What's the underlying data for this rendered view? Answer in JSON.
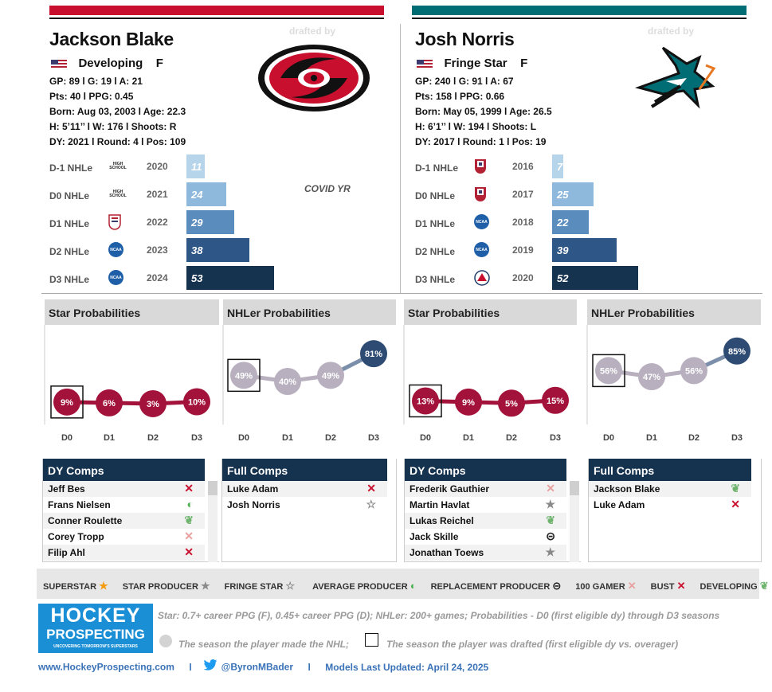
{
  "left": {
    "name": "Jackson Blake",
    "status": "Developing",
    "position": "F",
    "line1": "GP: 89 l G: 19 l A: 21",
    "line2": "Pts: 40 l PPG: 0.45",
    "line3": "Born: Aug 03, 2003 l Age: 22.3",
    "line4": "H: 5’11’’ l W: 176 l Shoots: R",
    "line5": "DY: 2021 l Round: 4 l Pos: 109",
    "drafted_by": "drafted by",
    "team_icon": "hurricanes-logo",
    "accent": "#c8102e",
    "covid_note": "COVID YR",
    "rows": [
      {
        "label": "D-1 NHLe",
        "year": "2020",
        "value": 11,
        "league": "HIGH SCHOOL",
        "color": "#b6d4ea"
      },
      {
        "label": "D0 NHLe",
        "year": "2021",
        "value": 24,
        "league": "HIGH SCHOOL",
        "color": "#8fb9dc"
      },
      {
        "label": "D1 NHLe",
        "year": "2022",
        "value": 29,
        "league": "USHL",
        "color": "#5a8cbd"
      },
      {
        "label": "D2 NHLe",
        "year": "2023",
        "value": 38,
        "league": "NCAA",
        "color": "#2e5687"
      },
      {
        "label": "D3 NHLe",
        "year": "2024",
        "value": 53,
        "league": "NCAA",
        "color": "#15324f"
      }
    ],
    "star_title": "Star Probabilities",
    "nhler_title": "NHLer Probabilities",
    "star_probs": [
      "9%",
      "6%",
      "3%",
      "10%"
    ],
    "nhler_probs": [
      "49%",
      "40%",
      "49%",
      "81%"
    ],
    "dy_title": "DY Comps",
    "full_title": "Full Comps",
    "dy_comps": [
      {
        "name": "Jeff Bes",
        "icon": "bust-x"
      },
      {
        "name": "Frans Nielsen",
        "icon": "average-producer"
      },
      {
        "name": "Conner Roulette",
        "icon": "developing-leaf"
      },
      {
        "name": "Corey Tropp",
        "icon": "100-gamer-x"
      },
      {
        "name": "Filip Ahl",
        "icon": "bust-x"
      }
    ],
    "full_comps": [
      {
        "name": "Luke Adam",
        "icon": "bust-x"
      },
      {
        "name": "Josh Norris",
        "icon": "fringe-star"
      }
    ]
  },
  "right": {
    "name": "Josh Norris",
    "status": "Fringe Star",
    "position": "F",
    "line1": "GP: 240 l G: 91 l A: 67",
    "line2": "Pts: 158 l PPG: 0.66",
    "line3": "Born: May 05, 1999 l Age: 26.5",
    "line4": "H: 6’1’’ l W: 194 l Shoots: L",
    "line5": "DY: 2017 l Round: 1 l Pos: 19",
    "drafted_by": "drafted by",
    "team_icon": "sharks-logo",
    "accent": "#006d75",
    "rows": [
      {
        "label": "D-1 NHLe",
        "year": "2016",
        "value": 7,
        "league": "USNTDP",
        "color": "#b6d4ea"
      },
      {
        "label": "D0 NHLe",
        "year": "2017",
        "value": 25,
        "league": "USNTDP",
        "color": "#8fb9dc"
      },
      {
        "label": "D1 NHLe",
        "year": "2018",
        "value": 22,
        "league": "NCAA",
        "color": "#5a8cbd"
      },
      {
        "label": "D2 NHLe",
        "year": "2019",
        "value": 39,
        "league": "NCAA",
        "color": "#2e5687"
      },
      {
        "label": "D3 NHLe",
        "year": "2020",
        "value": 52,
        "league": "AHL",
        "color": "#15324f"
      }
    ],
    "star_title": "Star Probabilities",
    "nhler_title": "NHLer Probabilities",
    "star_probs": [
      "13%",
      "9%",
      "5%",
      "15%"
    ],
    "nhler_probs": [
      "56%",
      "47%",
      "56%",
      "85%"
    ],
    "dy_title": "DY Comps",
    "full_title": "Full Comps",
    "dy_comps": [
      {
        "name": "Frederik Gauthier",
        "icon": "100-gamer-x"
      },
      {
        "name": "Martin Havlat",
        "icon": "star-producer"
      },
      {
        "name": "Lukas Reichel",
        "icon": "developing-leaf"
      },
      {
        "name": "Jack Skille",
        "icon": "replacement-producer"
      },
      {
        "name": "Jonathan Toews",
        "icon": "star-producer"
      }
    ],
    "full_comps": [
      {
        "name": "Jackson Blake",
        "icon": "developing-leaf"
      },
      {
        "name": "Luke Adam",
        "icon": "bust-x"
      }
    ]
  },
  "x_labels": [
    "D0",
    "D1",
    "D2",
    "D3"
  ],
  "legend": [
    {
      "label": "SUPERSTAR",
      "icon": "superstar"
    },
    {
      "label": "STAR PRODUCER",
      "icon": "star-producer"
    },
    {
      "label": "FRINGE STAR",
      "icon": "fringe-star"
    },
    {
      "label": "AVERAGE PRODUCER",
      "icon": "average-producer"
    },
    {
      "label": "REPLACEMENT PRODUCER",
      "icon": "replacement-producer"
    },
    {
      "label": "100 GAMER",
      "icon": "100-gamer-x"
    },
    {
      "label": "BUST",
      "icon": "bust-x"
    },
    {
      "label": "DEVELOPING",
      "icon": "developing-leaf"
    }
  ],
  "brand": {
    "line1": "HOCKEY",
    "line2": "PROSPECTING",
    "tagline": "UNCOVERING TOMORROW'S SUPERSTARS"
  },
  "note1": "Star: 0.7+ career PPG (F), 0.45+ career PPG (D); NHLer: 200+ games; Probabilities - D0 (first eligible dy) through D3 seasons",
  "note2": "The season the player made the NHL;",
  "note3": "The season the player was drafted (first eligible dy vs. overager)",
  "footer": {
    "site": "www.HockeyProspecting.com",
    "sep": "l",
    "handle": "@ByronMBader",
    "updated": "Models Last Updated: April 24, 2025"
  },
  "colors": {
    "star": "#a3123a",
    "nhler": "#b8b0be",
    "nhler_last": "#2e4b73",
    "header": "#15324f"
  }
}
